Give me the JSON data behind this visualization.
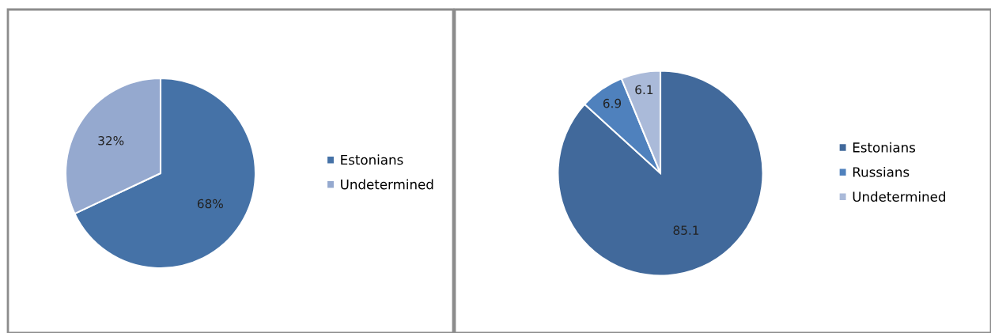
{
  "chart_data": [
    {
      "type": "pie",
      "categories": [
        "Estonians",
        "Undetermined"
      ],
      "values": [
        68,
        32
      ],
      "colors": [
        "#4572a7",
        "#95a9cf"
      ],
      "value_labels": [
        "68%",
        "32%"
      ],
      "legend": "right"
    },
    {
      "type": "pie",
      "categories": [
        "Estonians",
        "Russians",
        "Undetermined"
      ],
      "values": [
        85.1,
        6.9,
        6.1
      ],
      "colors": [
        "#41699b",
        "#4f81bd",
        "#aabad9"
      ],
      "data_labels": true,
      "legend": "right"
    }
  ]
}
